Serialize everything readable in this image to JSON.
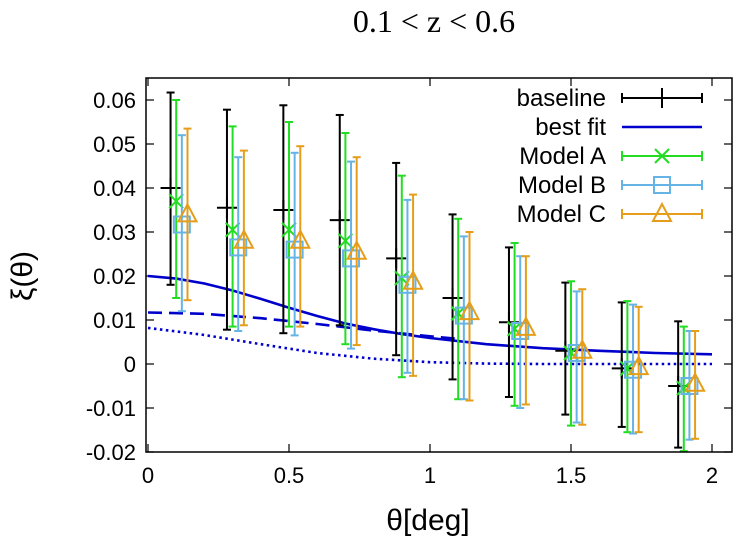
{
  "chart_data": {
    "type": "scatter",
    "title": "0.1 < z < 0.6",
    "xlabel": "θ[deg]",
    "ylabel": "ξ(θ)",
    "xlim": [
      0,
      2.05
    ],
    "ylim": [
      -0.02,
      0.065
    ],
    "x_ticks": [
      "0",
      "0.5",
      "1",
      "1.5",
      "2"
    ],
    "x_tick_values": [
      0,
      0.5,
      1,
      1.5,
      2
    ],
    "y_ticks": [
      "0.06",
      "0.05",
      "0.04",
      "0.03",
      "0.02",
      "0.01",
      "0",
      "-0.01",
      "-0.02"
    ],
    "y_tick_values": [
      0.06,
      0.05,
      0.04,
      0.03,
      0.02,
      0.01,
      0,
      -0.01,
      -0.02
    ],
    "grid": false,
    "legend_position": "top-right",
    "series": [
      {
        "name": "baseline",
        "marker": "plus",
        "color": "#000000",
        "x": [
          0.08,
          0.28,
          0.48,
          0.68,
          0.88,
          1.08,
          1.28,
          1.48,
          1.68,
          1.88
        ],
        "y": [
          0.04,
          0.0355,
          0.035,
          0.0327,
          0.024,
          0.015,
          0.0095,
          0.003,
          -0.001,
          -0.005
        ],
        "yerr_low": [
          0.018,
          0.0078,
          0.007,
          0.0088,
          0.002,
          -0.0035,
          -0.0075,
          -0.0115,
          -0.0143,
          -0.019
        ],
        "yerr_high": [
          0.0617,
          0.0578,
          0.0588,
          0.0566,
          0.0457,
          0.034,
          0.0265,
          0.0185,
          0.014,
          0.0097
        ]
      },
      {
        "name": "best fit",
        "line": "solid",
        "color": "#0000cc",
        "x": [
          0,
          0.1,
          0.2,
          0.3,
          0.4,
          0.5,
          0.6,
          0.7,
          0.8,
          0.9,
          1.0,
          1.2,
          1.4,
          1.6,
          1.8,
          2.0
        ],
        "y": [
          0.02,
          0.0194,
          0.0183,
          0.0167,
          0.0148,
          0.0128,
          0.0109,
          0.0092,
          0.0079,
          0.0068,
          0.0059,
          0.0045,
          0.0036,
          0.003,
          0.0025,
          0.0022
        ]
      },
      {
        "name": "",
        "line": "dashed",
        "color": "#0000cc",
        "x": [
          0,
          0.2,
          0.4,
          0.6,
          0.8,
          1.0,
          1.1
        ],
        "y": [
          0.0117,
          0.0114,
          0.0104,
          0.0091,
          0.0076,
          0.0063,
          0.0057
        ]
      },
      {
        "name": "",
        "line": "dotted",
        "color": "#0000cc",
        "x": [
          0,
          0.2,
          0.4,
          0.6,
          0.8,
          1.0,
          1.2,
          1.4,
          1.6,
          1.8,
          2.0
        ],
        "y": [
          0.0082,
          0.0066,
          0.0045,
          0.0025,
          0.0012,
          0.0004,
          0.0001,
          0.0,
          0.0,
          0.0,
          0.0
        ]
      },
      {
        "name": "Model A",
        "marker": "cross",
        "color": "#22dd22",
        "x": [
          0.1,
          0.3,
          0.5,
          0.7,
          0.9,
          1.1,
          1.3,
          1.5,
          1.7,
          1.9
        ],
        "y": [
          0.037,
          0.0305,
          0.0305,
          0.028,
          0.0195,
          0.0115,
          0.008,
          0.0025,
          -0.001,
          -0.0055
        ],
        "yerr_low": [
          0.015,
          0.0085,
          0.0085,
          0.0045,
          -0.003,
          -0.008,
          -0.0095,
          -0.014,
          -0.0155,
          -0.0198
        ],
        "yerr_high": [
          0.06,
          0.054,
          0.055,
          0.0525,
          0.0428,
          0.033,
          0.0275,
          0.0188,
          0.0143,
          0.0085
        ]
      },
      {
        "name": "Model B",
        "marker": "square",
        "color": "#66b3e6",
        "x": [
          0.12,
          0.32,
          0.52,
          0.72,
          0.92,
          1.12,
          1.32,
          1.52,
          1.72,
          1.92
        ],
        "y": [
          0.0317,
          0.0265,
          0.026,
          0.024,
          0.018,
          0.011,
          0.0075,
          0.0025,
          -0.0013,
          -0.005
        ],
        "yerr_low": [
          0.012,
          0.0075,
          0.0065,
          0.0035,
          -0.002,
          -0.008,
          -0.01,
          -0.0133,
          -0.0158,
          -0.0172
        ],
        "yerr_high": [
          0.052,
          0.047,
          0.048,
          0.046,
          0.0373,
          0.029,
          0.0245,
          0.0165,
          0.0135,
          0.0075
        ]
      },
      {
        "name": "Model C",
        "marker": "triangle",
        "color": "#e69e1a",
        "x": [
          0.14,
          0.34,
          0.54,
          0.74,
          0.94,
          1.14,
          1.34,
          1.54,
          1.74,
          1.94
        ],
        "y": [
          0.034,
          0.028,
          0.028,
          0.0255,
          0.0187,
          0.0118,
          0.0082,
          0.003,
          -0.0007,
          -0.0045
        ],
        "yerr_low": [
          0.0145,
          0.0088,
          0.0085,
          0.0043,
          -0.0027,
          -0.0083,
          -0.0092,
          -0.0138,
          -0.0155,
          -0.017
        ],
        "yerr_high": [
          0.0535,
          0.0485,
          0.0495,
          0.047,
          0.0385,
          0.03,
          0.0245,
          0.017,
          0.013,
          0.0075
        ]
      }
    ]
  }
}
